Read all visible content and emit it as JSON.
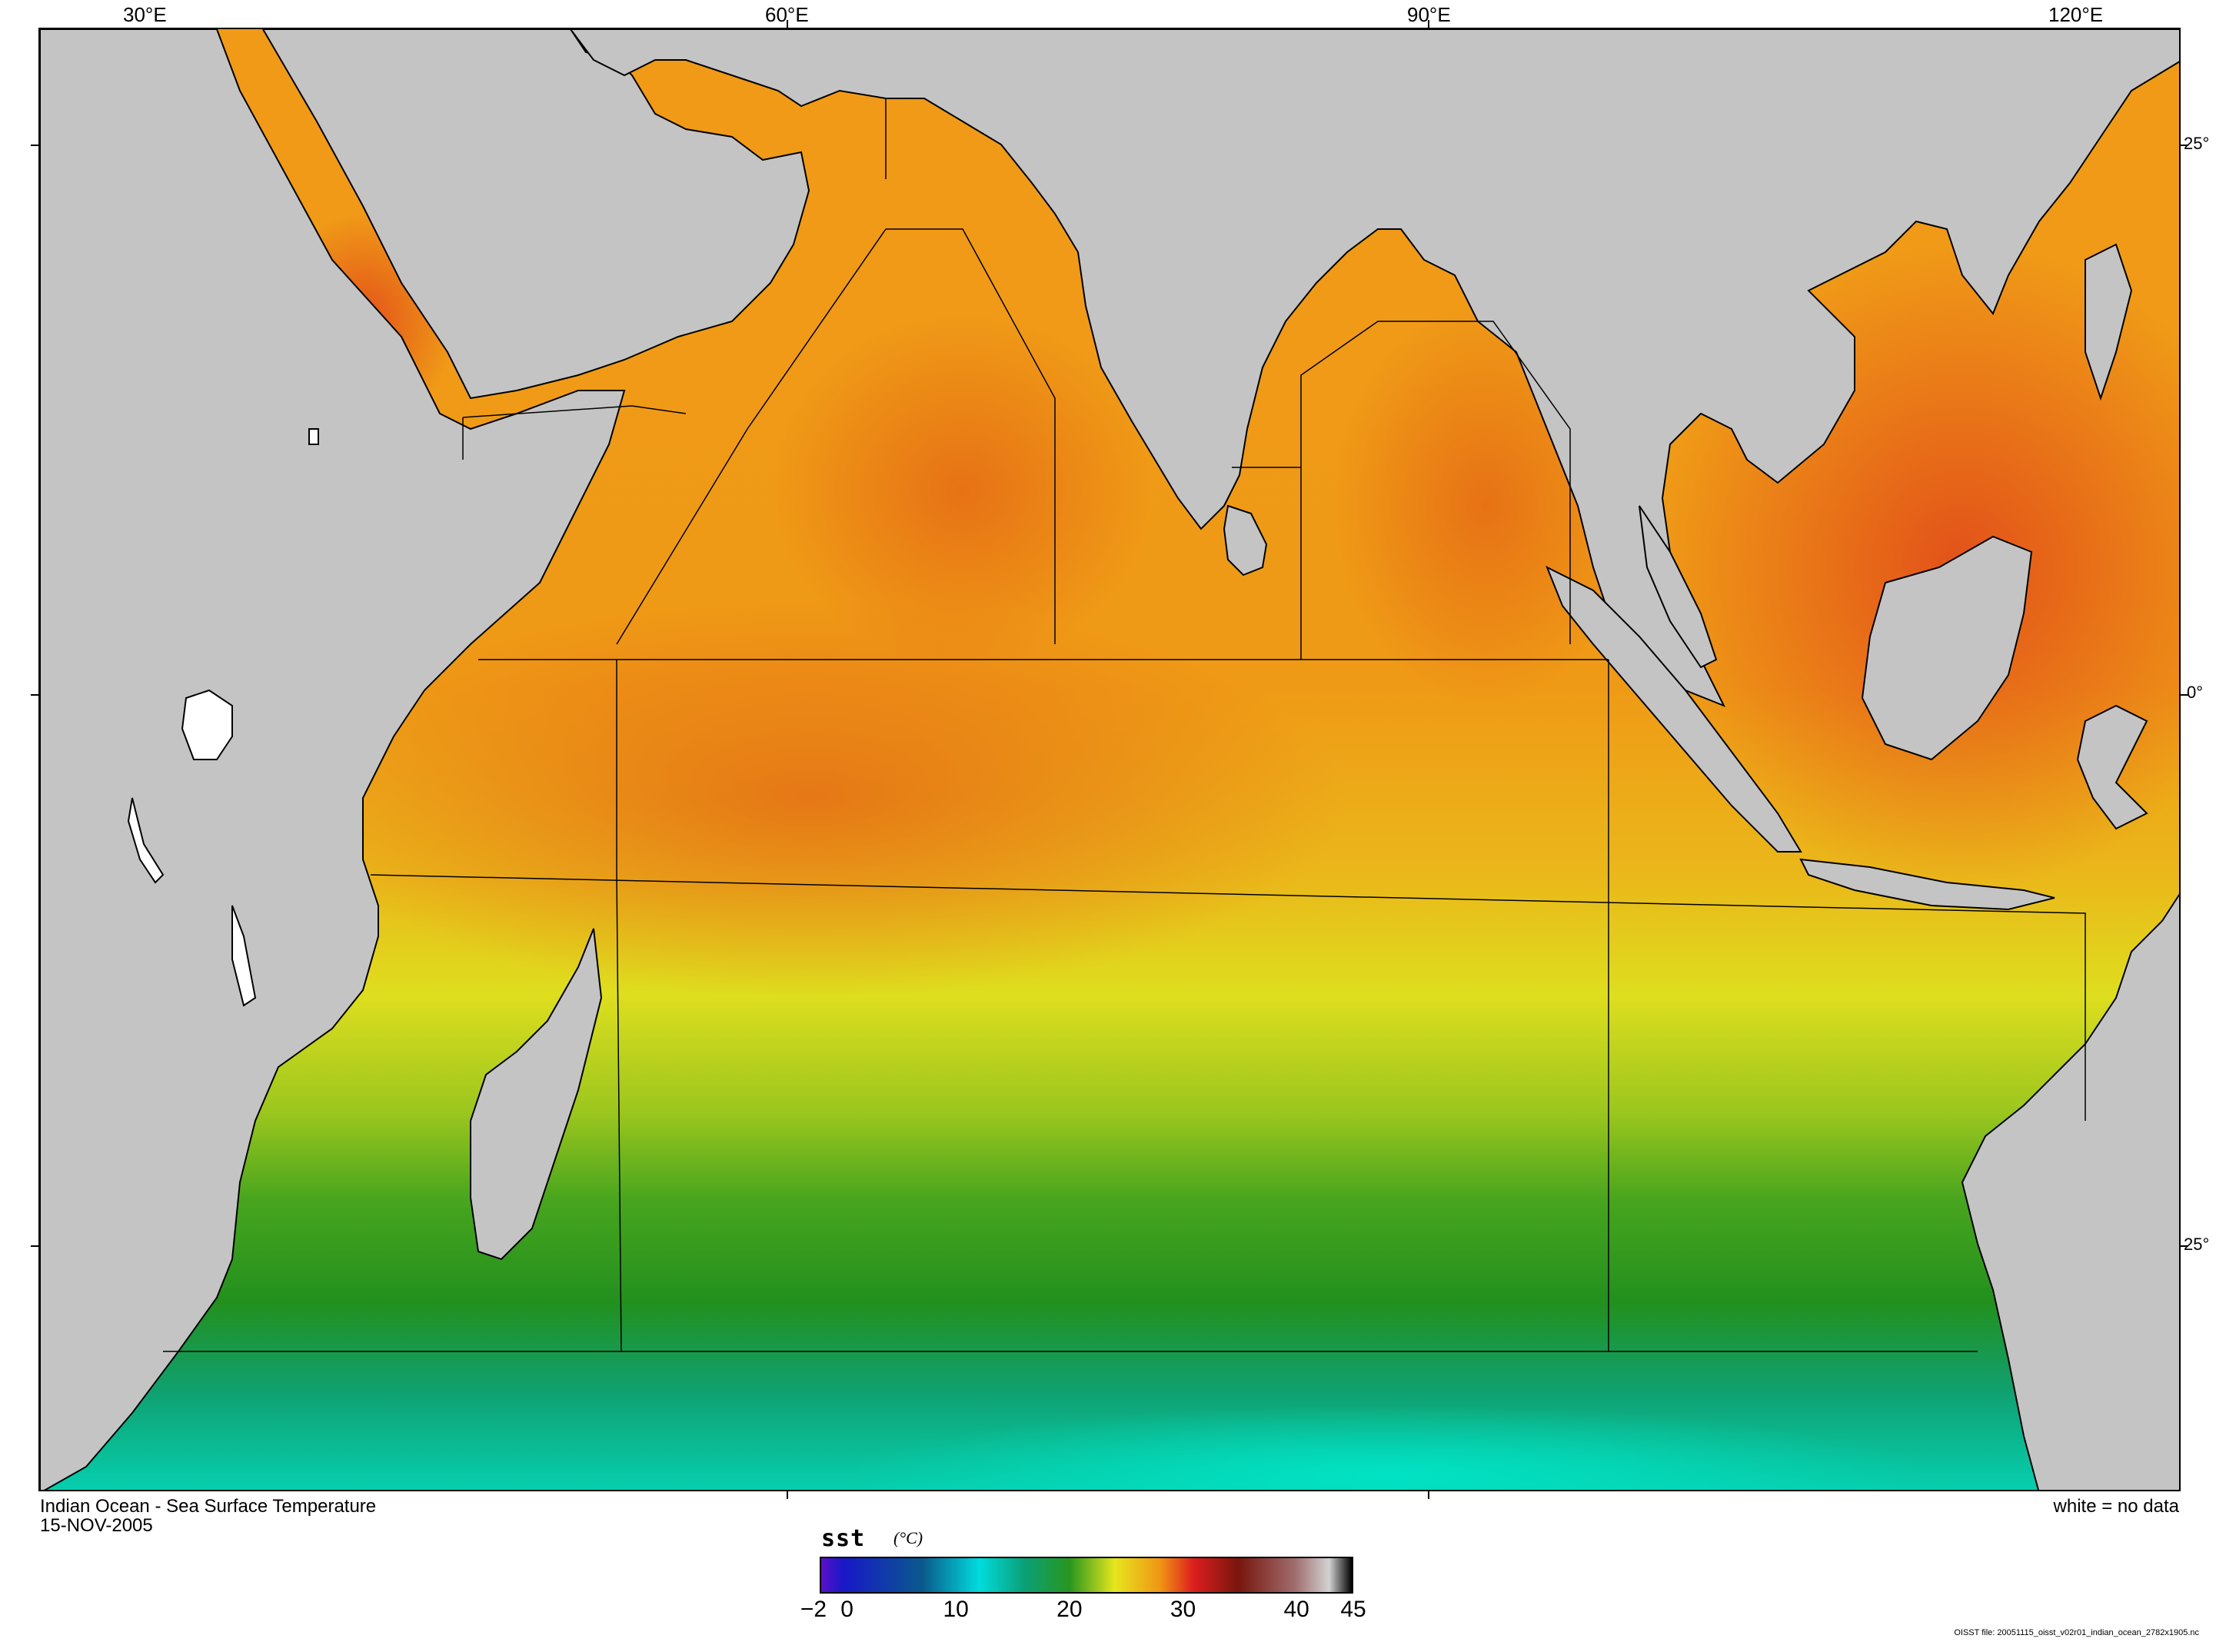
{
  "map": {
    "title": "Indian Ocean - Sea Surface Temperature",
    "date": "15-NOV-2005",
    "no_data_note": "white = no data",
    "file_note": "OISST file: 20051115_oisst_v02r01_indian_ocean_2782x1905.nc",
    "lon_labels": [
      "30°E",
      "60°E",
      "90°E",
      "120°E"
    ],
    "lat_labels": [
      "25°",
      "0°",
      "25°"
    ]
  },
  "colorbar": {
    "variable": "sst",
    "units": "(°C)",
    "ticks": [
      "−2",
      "0",
      "10",
      "20",
      "30",
      "40",
      "45"
    ],
    "range": [
      -2,
      45
    ],
    "stops": [
      {
        "value": -2,
        "color": "#5a10c8"
      },
      {
        "value": 0,
        "color": "#1818c8"
      },
      {
        "value": 7,
        "color": "#0a5a8c"
      },
      {
        "value": 12,
        "color": "#00dcdc"
      },
      {
        "value": 16,
        "color": "#0aa078"
      },
      {
        "value": 20,
        "color": "#28961e"
      },
      {
        "value": 24,
        "color": "#e6e61e"
      },
      {
        "value": 28,
        "color": "#f09614"
      },
      {
        "value": 31,
        "color": "#dc1e1e"
      },
      {
        "value": 35,
        "color": "#78160e"
      },
      {
        "value": 40,
        "color": "#a06e6e"
      },
      {
        "value": 43,
        "color": "#d2d2d2"
      },
      {
        "value": 45,
        "color": "#000000"
      }
    ]
  },
  "colors": {
    "land": "#c4c4c4",
    "warm_ocean": "#f0a014",
    "hot_ocean": "#e05a14",
    "mid_ocean": "#e6e61e",
    "cool_ocean": "#28961e",
    "cold_ocean": "#00dcb4"
  }
}
